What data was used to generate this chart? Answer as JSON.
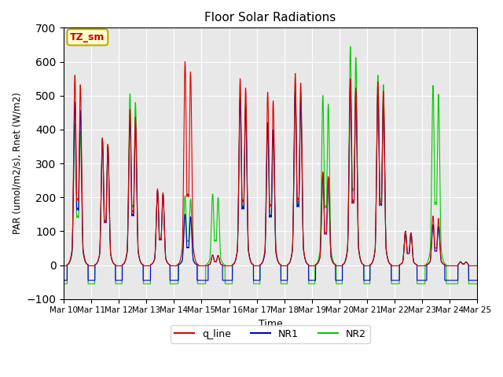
{
  "title": "Floor Solar Radiations",
  "xlabel": "Time",
  "ylabel": "PAR (umol/m2/s), Rnet (W/m2)",
  "ylim": [
    -100,
    700
  ],
  "yticks": [
    -100,
    0,
    100,
    200,
    300,
    400,
    500,
    600,
    700
  ],
  "num_days": 15,
  "start_day": 10,
  "points_per_day": 288,
  "bg_color": "#e8e8e8",
  "line_colors": {
    "q_line": "#dd0000",
    "NR1": "#0000cc",
    "NR2": "#00cc00"
  },
  "annotation_text": "TZ_sm",
  "annotation_bg": "#ffffcc",
  "annotation_border": "#bbaa00",
  "annotation_text_color": "#cc0000",
  "peaks_red": [
    560,
    375,
    460,
    225,
    600,
    30,
    550,
    510,
    565,
    275,
    550,
    540,
    100,
    145,
    10
  ],
  "peaks_blue": [
    480,
    370,
    430,
    220,
    150,
    30,
    490,
    420,
    510,
    270,
    540,
    520,
    100,
    120,
    10
  ],
  "peaks_green": [
    415,
    375,
    505,
    220,
    205,
    210,
    505,
    420,
    535,
    500,
    645,
    560,
    100,
    530,
    10
  ],
  "valley_red": -2,
  "valley_blue": -45,
  "valley_green": -55,
  "sigma": 0.045
}
